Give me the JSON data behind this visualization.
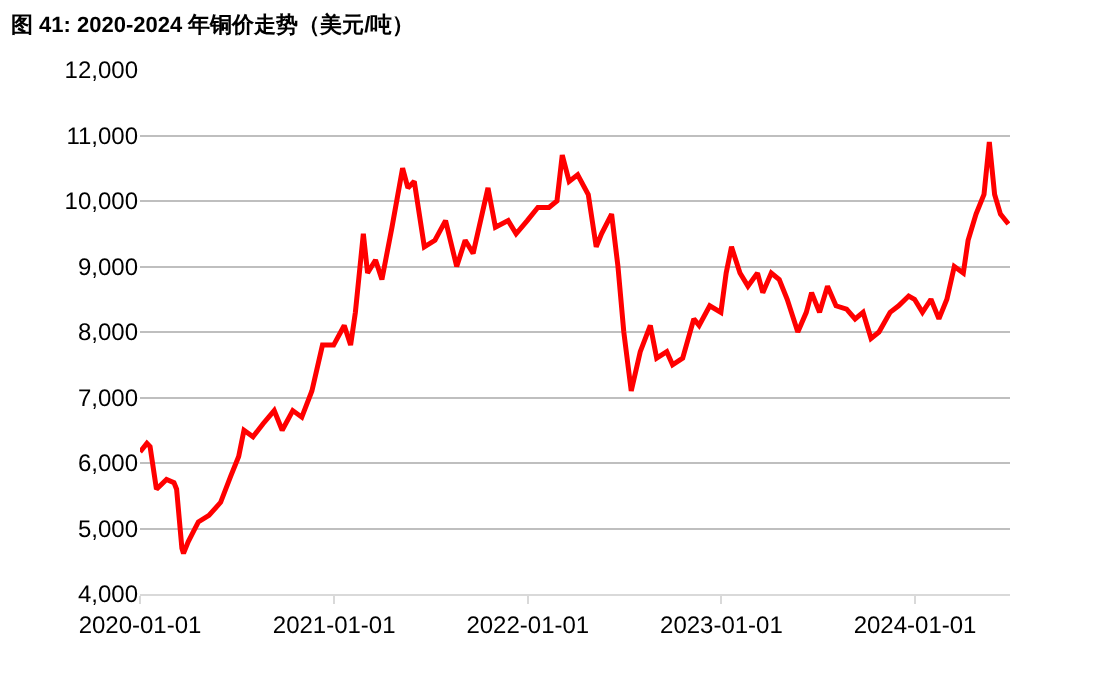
{
  "chart_data": {
    "type": "line",
    "title": "图 41: 2020-2024 年铜价走势（美元/吨）",
    "x": [
      "2020-01-01",
      "2020-01-14",
      "2020-01-20",
      "2020-02-01",
      "2020-02-20",
      "2020-03-05",
      "2020-03-10",
      "2020-03-20",
      "2020-03-23",
      "2020-04-01",
      "2020-04-20",
      "2020-05-10",
      "2020-06-01",
      "2020-06-20",
      "2020-07-05",
      "2020-07-15",
      "2020-08-01",
      "2020-08-20",
      "2020-09-10",
      "2020-09-25",
      "2020-10-15",
      "2020-11-01",
      "2020-11-20",
      "2020-12-10",
      "2020-12-31",
      "2021-01-20",
      "2021-02-01",
      "2021-02-10",
      "2021-02-25",
      "2021-03-05",
      "2021-03-20",
      "2021-04-01",
      "2021-04-20",
      "2021-05-10",
      "2021-05-20",
      "2021-06-01",
      "2021-06-20",
      "2021-07-10",
      "2021-07-30",
      "2021-08-20",
      "2021-09-05",
      "2021-09-20",
      "2021-10-18",
      "2021-11-01",
      "2021-11-25",
      "2021-12-10",
      "2021-12-31",
      "2022-01-20",
      "2022-02-10",
      "2022-02-25",
      "2022-03-07",
      "2022-03-20",
      "2022-04-05",
      "2022-04-25",
      "2022-05-10",
      "2022-05-20",
      "2022-06-08",
      "2022-06-20",
      "2022-07-01",
      "2022-07-15",
      "2022-08-01",
      "2022-08-20",
      "2022-09-01",
      "2022-09-20",
      "2022-10-01",
      "2022-10-20",
      "2022-11-10",
      "2022-11-20",
      "2022-12-10",
      "2022-12-31",
      "2023-01-10",
      "2023-01-20",
      "2023-02-05",
      "2023-02-20",
      "2023-03-10",
      "2023-03-20",
      "2023-04-05",
      "2023-04-20",
      "2023-05-05",
      "2023-05-25",
      "2023-06-10",
      "2023-06-20",
      "2023-07-05",
      "2023-07-20",
      "2023-08-05",
      "2023-08-25",
      "2023-09-10",
      "2023-09-25",
      "2023-10-10",
      "2023-10-25",
      "2023-11-15",
      "2023-12-01",
      "2023-12-20",
      "2023-12-31",
      "2024-01-15",
      "2024-01-31",
      "2024-02-15",
      "2024-03-01",
      "2024-03-15",
      "2024-04-01",
      "2024-04-10",
      "2024-04-25",
      "2024-05-10",
      "2024-05-20",
      "2024-05-30",
      "2024-06-10",
      "2024-06-25"
    ],
    "series": [
      {
        "color": "#ff0000",
        "values": [
          6170,
          6300,
          6250,
          5600,
          5750,
          5700,
          5600,
          4700,
          4620,
          4800,
          5100,
          5200,
          5400,
          5800,
          6100,
          6500,
          6400,
          6600,
          6800,
          6500,
          6800,
          6700,
          7100,
          7800,
          7800,
          8100,
          7800,
          8300,
          9500,
          8900,
          9100,
          8800,
          9600,
          10500,
          10200,
          10300,
          9300,
          9400,
          9700,
          9000,
          9400,
          9200,
          10200,
          9600,
          9700,
          9500,
          9700,
          9900,
          9900,
          10000,
          10700,
          10300,
          10400,
          10100,
          9300,
          9500,
          9800,
          9000,
          8000,
          7100,
          7700,
          8100,
          7600,
          7700,
          7500,
          7600,
          8200,
          8100,
          8400,
          8300,
          8900,
          9300,
          8900,
          8700,
          8900,
          8600,
          8900,
          8800,
          8500,
          8000,
          8300,
          8600,
          8300,
          8700,
          8400,
          8350,
          8200,
          8300,
          7900,
          8000,
          8300,
          8400,
          8550,
          8500,
          8300,
          8500,
          8200,
          8500,
          9000,
          8900,
          9400,
          9800,
          10100,
          10900,
          10100,
          9800,
          9650
        ]
      }
    ],
    "xlim": [
      "2020-01-01",
      "2024-06-28"
    ],
    "xticks": [
      "2020-01-01",
      "2021-01-01",
      "2022-01-01",
      "2023-01-01",
      "2024-01-01"
    ],
    "ylim": [
      4000,
      12000
    ],
    "yticks": [
      {
        "value": 4000,
        "label": "4,000"
      },
      {
        "value": 5000,
        "label": "5,000"
      },
      {
        "value": 6000,
        "label": "6,000"
      },
      {
        "value": 7000,
        "label": "7,000"
      },
      {
        "value": 8000,
        "label": "8,000"
      },
      {
        "value": 9000,
        "label": "9,000"
      },
      {
        "value": 10000,
        "label": "10,000"
      },
      {
        "value": 11000,
        "label": "11,000"
      },
      {
        "value": 12000,
        "label": "12,000"
      }
    ],
    "grid": "y",
    "legend": false,
    "marker": "none",
    "line_style": "solid"
  }
}
